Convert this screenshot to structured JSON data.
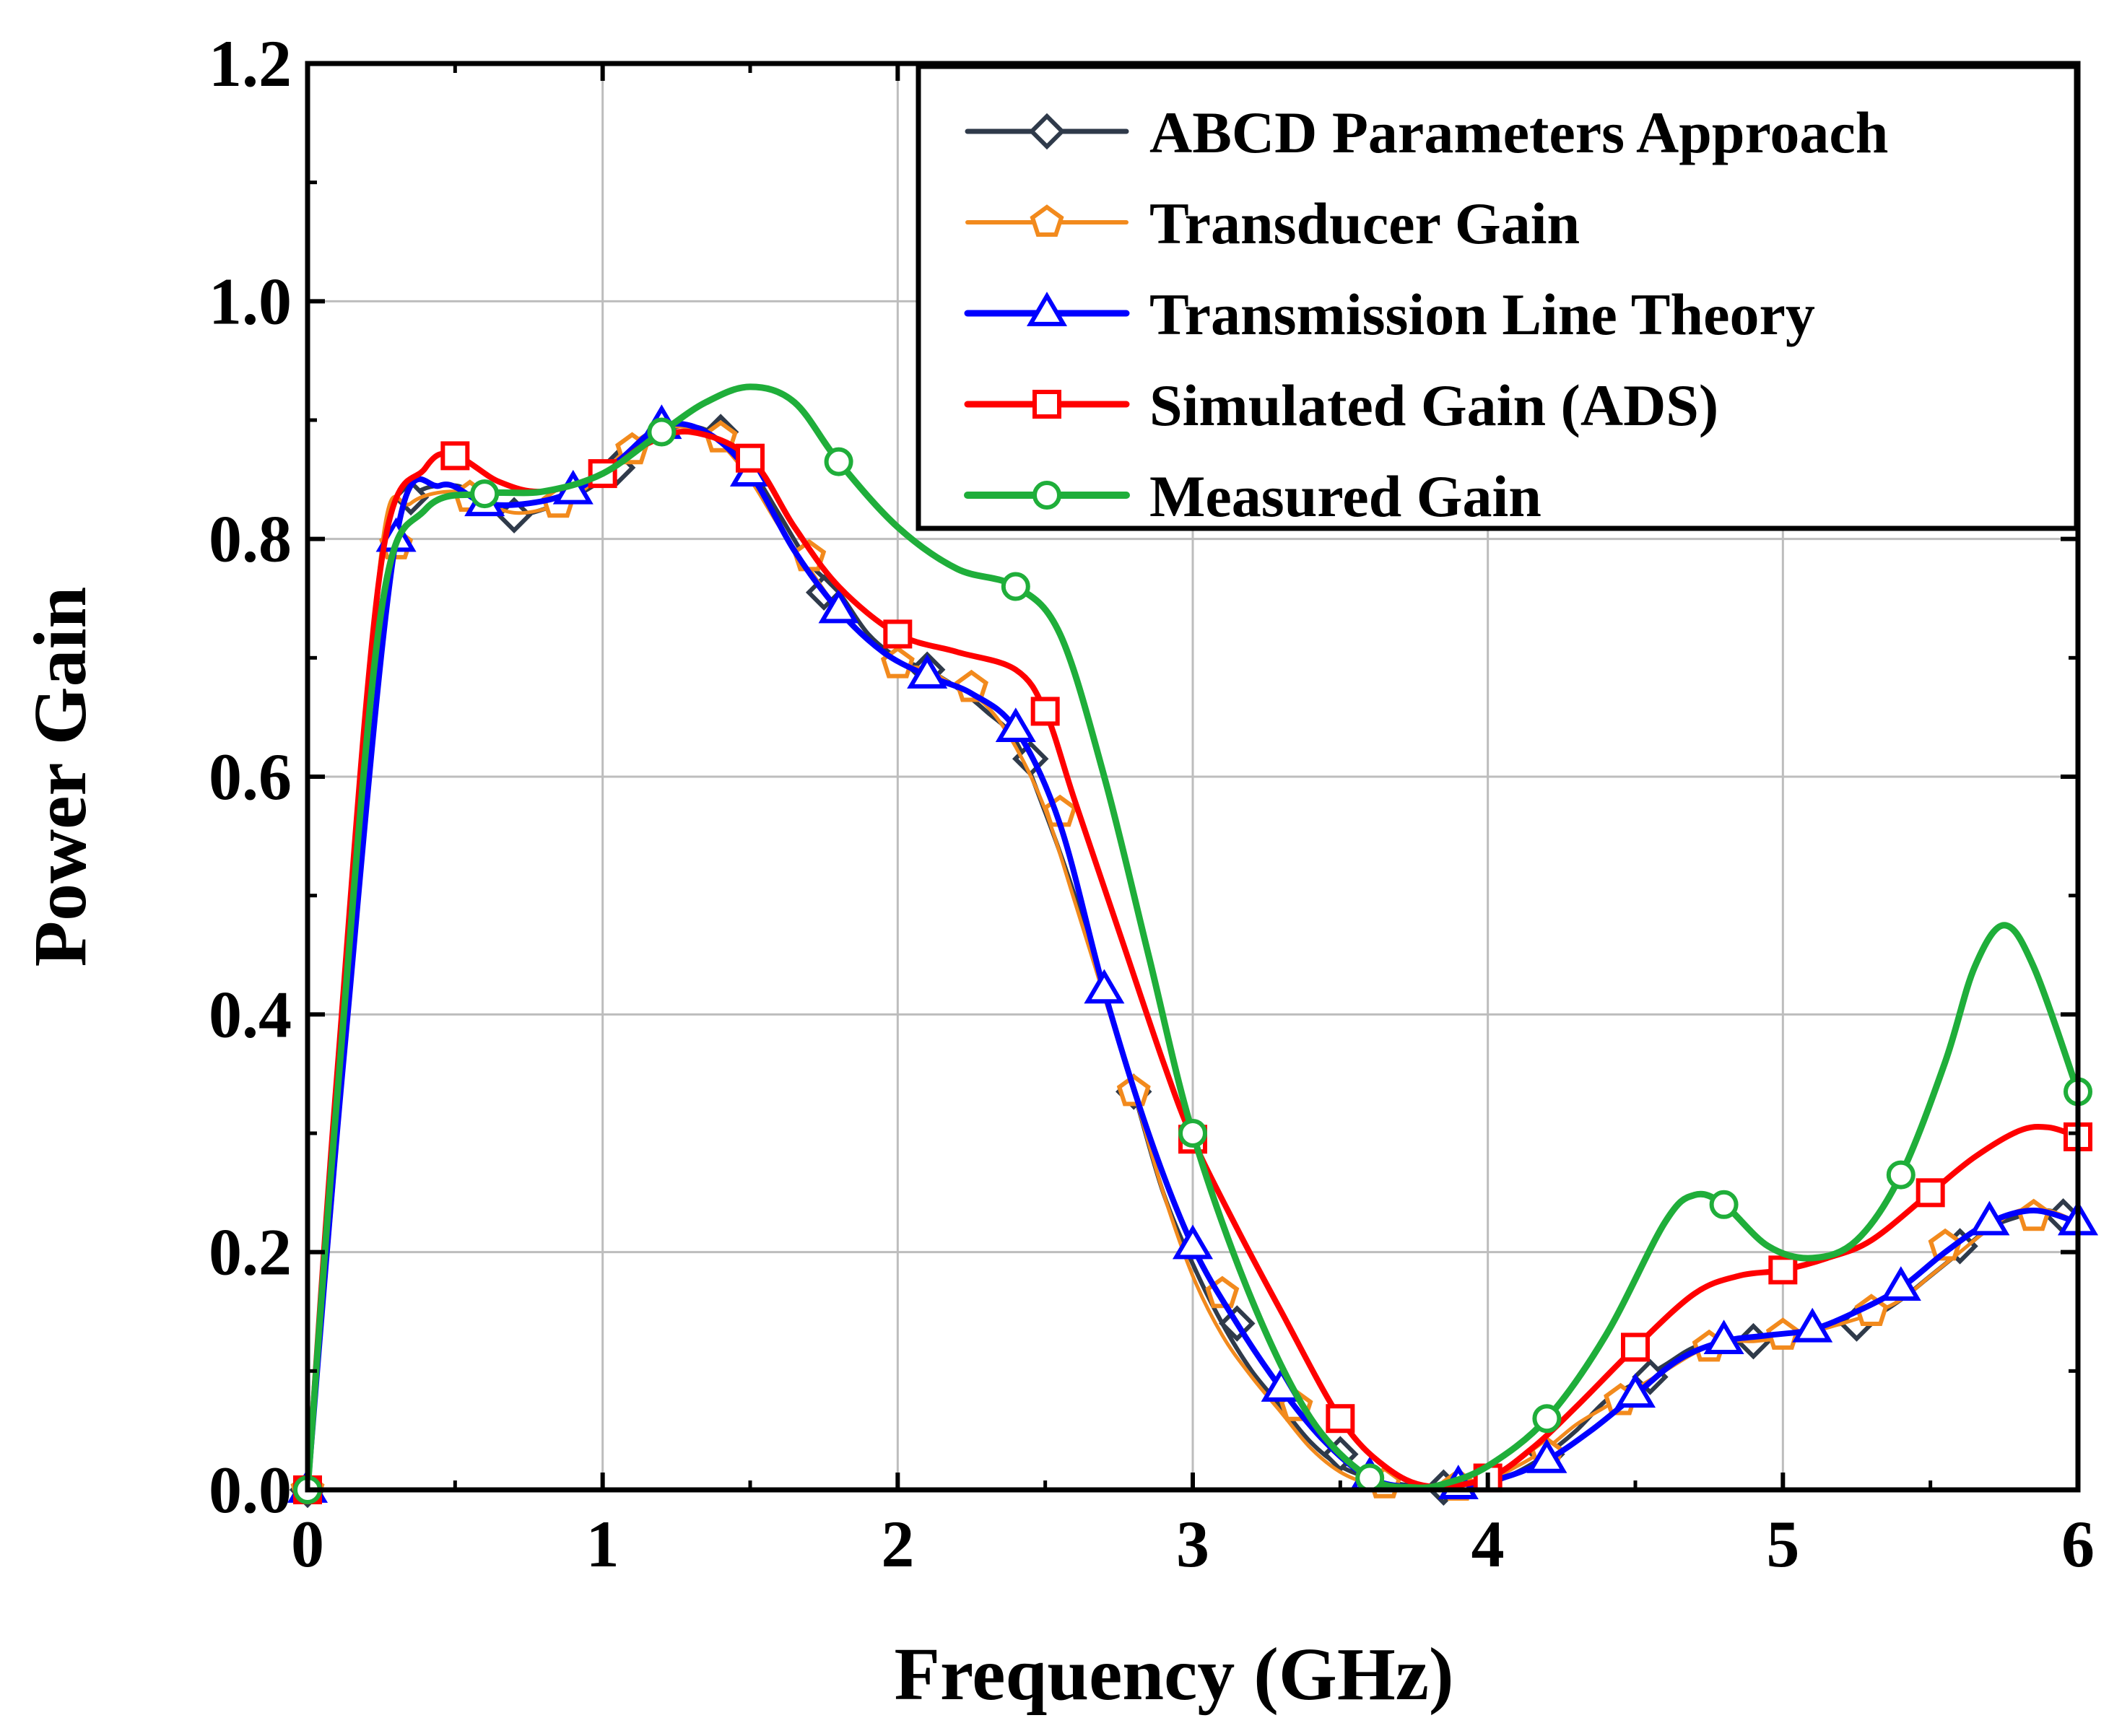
{
  "chart_data": {
    "type": "line",
    "title": "",
    "xlabel": "Frequency (GHz)",
    "ylabel": "Power Gain",
    "xlim": [
      0,
      6
    ],
    "ylim": [
      0,
      1.2
    ],
    "x_ticks": [
      0,
      1,
      2,
      3,
      4,
      5,
      6
    ],
    "x_tick_labels": [
      "0",
      "1",
      "2",
      "3",
      "4",
      "5",
      "6"
    ],
    "y_ticks": [
      0,
      0.2,
      0.4,
      0.6,
      0.8,
      1.0,
      1.2
    ],
    "y_tick_labels": [
      "0.0",
      "0.2",
      "0.4",
      "0.6",
      "0.8",
      "1.0",
      "1.2"
    ],
    "grid": true,
    "legend_position": "top-right",
    "series": [
      {
        "name": "ABCD Parameters Approach",
        "color": "#2f3a4a",
        "marker": "diamond",
        "line_width": 6,
        "x": [
          0,
          0.125,
          0.25,
          0.35,
          0.5,
          0.6,
          0.7,
          0.8,
          0.9,
          1.0,
          1.1,
          1.2,
          1.3,
          1.4,
          1.5,
          1.6,
          1.7,
          1.8,
          1.9,
          2.0,
          2.1,
          2.2,
          2.3,
          2.4,
          2.5,
          2.6,
          2.7,
          2.8,
          2.9,
          3.0,
          3.1,
          3.2,
          3.3,
          3.4,
          3.5,
          3.6,
          3.7,
          3.8,
          3.9,
          4.0,
          4.1,
          4.2,
          4.3,
          4.4,
          4.5,
          4.6,
          4.7,
          4.8,
          4.9,
          5.0,
          5.1,
          5.2,
          5.3,
          5.4,
          5.5,
          5.6,
          5.7,
          5.8,
          5.9,
          6.0
        ],
        "y": [
          0,
          0.38,
          0.78,
          0.835,
          0.845,
          0.83,
          0.82,
          0.825,
          0.835,
          0.85,
          0.87,
          0.89,
          0.895,
          0.885,
          0.86,
          0.82,
          0.78,
          0.755,
          0.72,
          0.7,
          0.69,
          0.675,
          0.655,
          0.63,
          0.57,
          0.5,
          0.42,
          0.335,
          0.25,
          0.19,
          0.14,
          0.1,
          0.07,
          0.04,
          0.02,
          0.01,
          0.005,
          0.002,
          0.002,
          0.005,
          0.015,
          0.03,
          0.05,
          0.075,
          0.09,
          0.105,
          0.12,
          0.125,
          0.125,
          0.13,
          0.135,
          0.14,
          0.145,
          0.16,
          0.18,
          0.2,
          0.22,
          0.23,
          0.235,
          0.225
        ],
        "marker_x": [
          0,
          0.35,
          0.7,
          1.05,
          1.4,
          1.75,
          2.1,
          2.45,
          2.8,
          3.15,
          3.5,
          3.85,
          4.2,
          4.55,
          4.9,
          5.25,
          5.6,
          5.95
        ],
        "marker_y": [
          0,
          0.835,
          0.82,
          0.86,
          0.89,
          0.755,
          0.69,
          0.615,
          0.335,
          0.14,
          0.03,
          0.002,
          0.03,
          0.095,
          0.125,
          0.14,
          0.205,
          0.23
        ]
      },
      {
        "name": "Transducer Gain",
        "color": "#f28a1d",
        "marker": "pentagon",
        "line_width": 5,
        "x": [
          0,
          0.125,
          0.25,
          0.35,
          0.5,
          0.6,
          0.7,
          0.8,
          0.9,
          1.0,
          1.1,
          1.2,
          1.3,
          1.4,
          1.5,
          1.6,
          1.7,
          1.8,
          1.9,
          2.0,
          2.1,
          2.2,
          2.3,
          2.4,
          2.5,
          2.6,
          2.7,
          2.8,
          2.9,
          3.0,
          3.1,
          3.2,
          3.3,
          3.4,
          3.5,
          3.6,
          3.7,
          3.8,
          3.9,
          4.0,
          4.1,
          4.2,
          4.3,
          4.4,
          4.5,
          4.6,
          4.7,
          4.8,
          4.9,
          5.0,
          5.1,
          5.2,
          5.3,
          5.4,
          5.5,
          5.6,
          5.7,
          5.8,
          5.9,
          6.0
        ],
        "y": [
          0,
          0.37,
          0.79,
          0.83,
          0.84,
          0.83,
          0.822,
          0.825,
          0.835,
          0.855,
          0.88,
          0.893,
          0.893,
          0.88,
          0.85,
          0.81,
          0.775,
          0.74,
          0.715,
          0.695,
          0.69,
          0.675,
          0.66,
          0.625,
          0.572,
          0.495,
          0.415,
          0.335,
          0.25,
          0.18,
          0.13,
          0.095,
          0.065,
          0.035,
          0.015,
          0.005,
          0.002,
          0.002,
          0.003,
          0.008,
          0.02,
          0.035,
          0.055,
          0.07,
          0.085,
          0.1,
          0.115,
          0.125,
          0.125,
          0.128,
          0.133,
          0.14,
          0.148,
          0.16,
          0.18,
          0.2,
          0.22,
          0.235,
          0.235,
          0.225
        ],
        "marker_x": [
          0,
          0.3,
          0.55,
          0.85,
          1.1,
          1.4,
          1.7,
          2.0,
          2.25,
          2.55,
          2.8,
          3.1,
          3.35,
          3.65,
          3.9,
          4.2,
          4.45,
          4.75,
          5.0,
          5.3,
          5.55,
          5.85
        ],
        "marker_y": [
          0,
          0.795,
          0.835,
          0.83,
          0.875,
          0.885,
          0.785,
          0.695,
          0.675,
          0.57,
          0.335,
          0.165,
          0.07,
          0.005,
          0.003,
          0.03,
          0.075,
          0.12,
          0.13,
          0.15,
          0.205,
          0.23
        ]
      },
      {
        "name": "Transmission Line Theory",
        "color": "#0000ff",
        "marker": "triangle",
        "line_width": 8,
        "x": [
          0,
          0.125,
          0.3,
          0.45,
          0.6,
          0.75,
          0.9,
          1.05,
          1.2,
          1.35,
          1.5,
          1.65,
          1.8,
          1.95,
          2.1,
          2.25,
          2.4,
          2.55,
          2.7,
          2.85,
          3.0,
          3.15,
          3.3,
          3.45,
          3.6,
          3.75,
          3.9,
          4.05,
          4.2,
          4.35,
          4.5,
          4.65,
          4.8,
          4.95,
          5.1,
          5.25,
          5.4,
          5.55,
          5.7,
          5.85,
          6.0
        ],
        "y": [
          0,
          0.37,
          0.8,
          0.845,
          0.83,
          0.83,
          0.84,
          0.865,
          0.895,
          0.89,
          0.855,
          0.79,
          0.74,
          0.705,
          0.685,
          0.67,
          0.64,
          0.56,
          0.42,
          0.3,
          0.205,
          0.14,
          0.085,
          0.04,
          0.01,
          0.002,
          0.003,
          0.01,
          0.025,
          0.05,
          0.08,
          0.11,
          0.125,
          0.13,
          0.135,
          0.15,
          0.17,
          0.2,
          0.225,
          0.235,
          0.225
        ],
        "marker_x": [
          0,
          0.3,
          0.6,
          0.9,
          1.2,
          1.5,
          1.8,
          2.1,
          2.4,
          2.7,
          3.0,
          3.3,
          3.6,
          3.9,
          4.2,
          4.5,
          4.8,
          5.1,
          5.4,
          5.7,
          6.0
        ],
        "marker_y": [
          0,
          0.8,
          0.83,
          0.84,
          0.895,
          0.855,
          0.74,
          0.685,
          0.64,
          0.42,
          0.205,
          0.085,
          0.01,
          0.003,
          0.025,
          0.08,
          0.125,
          0.135,
          0.17,
          0.225,
          0.225
        ]
      },
      {
        "name": "Simulated Gain (ADS)",
        "color": "#ff0000",
        "marker": "square",
        "line_width": 8,
        "x": [
          0,
          0.1,
          0.25,
          0.4,
          0.5,
          0.65,
          0.8,
          1.0,
          1.15,
          1.3,
          1.5,
          1.65,
          1.8,
          2.0,
          2.2,
          2.4,
          2.5,
          2.6,
          2.75,
          2.9,
          3.0,
          3.15,
          3.3,
          3.5,
          3.65,
          3.8,
          4.0,
          4.15,
          4.3,
          4.5,
          4.7,
          4.85,
          5.0,
          5.15,
          5.3,
          5.5,
          5.65,
          5.8,
          5.9,
          6.0
        ],
        "y": [
          0,
          0.35,
          0.78,
          0.86,
          0.87,
          0.848,
          0.84,
          0.855,
          0.88,
          0.89,
          0.868,
          0.81,
          0.76,
          0.72,
          0.705,
          0.69,
          0.655,
          0.58,
          0.47,
          0.36,
          0.295,
          0.22,
          0.15,
          0.06,
          0.02,
          0.003,
          0.01,
          0.035,
          0.07,
          0.12,
          0.165,
          0.18,
          0.185,
          0.195,
          0.21,
          0.25,
          0.28,
          0.302,
          0.305,
          0.297
        ],
        "marker_x": [
          0,
          0.5,
          1.0,
          1.5,
          2.0,
          2.5,
          3.0,
          3.5,
          4.0,
          4.5,
          5.0,
          5.5,
          6.0
        ],
        "marker_y": [
          0,
          0.87,
          0.855,
          0.868,
          0.72,
          0.655,
          0.295,
          0.06,
          0.01,
          0.12,
          0.185,
          0.25,
          0.297
        ]
      },
      {
        "name": "Measured Gain",
        "color": "#1fae3a",
        "marker": "circle",
        "line_width": 9,
        "x": [
          0,
          0.1,
          0.25,
          0.4,
          0.6,
          0.8,
          1.0,
          1.2,
          1.35,
          1.5,
          1.65,
          1.8,
          2.0,
          2.2,
          2.4,
          2.55,
          2.7,
          2.85,
          3.0,
          3.2,
          3.4,
          3.6,
          3.75,
          3.85,
          4.0,
          4.2,
          4.4,
          4.6,
          4.7,
          4.8,
          4.95,
          5.1,
          5.25,
          5.4,
          5.55,
          5.65,
          5.75,
          5.85,
          6.0
        ],
        "y": [
          0,
          0.33,
          0.74,
          0.825,
          0.838,
          0.84,
          0.855,
          0.89,
          0.915,
          0.928,
          0.915,
          0.865,
          0.81,
          0.775,
          0.76,
          0.72,
          0.6,
          0.45,
          0.3,
          0.16,
          0.06,
          0.01,
          0.002,
          0.005,
          0.02,
          0.06,
          0.13,
          0.225,
          0.248,
          0.24,
          0.205,
          0.195,
          0.21,
          0.265,
          0.36,
          0.44,
          0.475,
          0.44,
          0.335
        ],
        "marker_x": [
          0,
          0.6,
          1.2,
          1.8,
          2.4,
          3.0,
          3.6,
          4.2,
          4.8,
          5.4,
          6.0
        ],
        "marker_y": [
          0,
          0.838,
          0.89,
          0.865,
          0.76,
          0.3,
          0.01,
          0.06,
          0.24,
          0.265,
          0.335
        ]
      }
    ]
  }
}
